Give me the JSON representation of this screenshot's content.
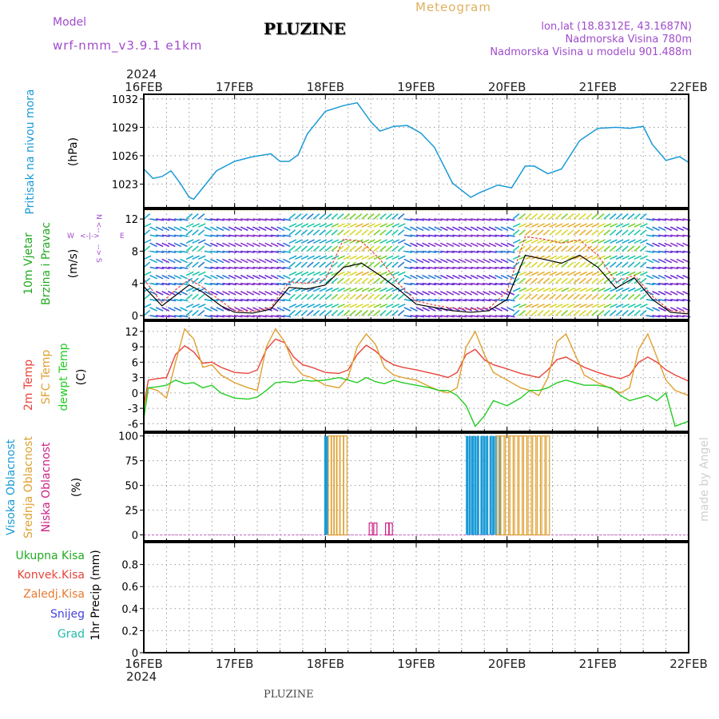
{
  "header": {
    "model_label": "Model",
    "model_name": "wrf-nmm_v3.9.1 e1km",
    "station": "PLUZINE",
    "product": "Meteogram",
    "coords": "lon,lat (18.8312E, 43.1687N)",
    "elevation": "Nadmorska Visina 780m",
    "model_elevation": "Nadmorska Visina u modelu 901.488m",
    "footer": "PLUZINE",
    "credit": "made by Angel"
  },
  "time_axis": {
    "year": "2024",
    "labels": [
      "16FEB",
      "17FEB",
      "18FEB",
      "19FEB",
      "20FEB",
      "21FEB",
      "22FEB"
    ]
  },
  "colors": {
    "pressure": "#1a9ad6",
    "temp2m": "#e8443a",
    "sfc_temp": "#e0a030",
    "dewpoint": "#22cc22",
    "high_cloud": "#1a9ad6",
    "mid_cloud": "#e0a030",
    "low_cloud": "#cc2288",
    "precip_total": "#22aa22",
    "precip_conv": "#e8443a",
    "precip_frz": "#e87a30",
    "snow": "#4444dd",
    "hail": "#22bbaa",
    "wind_axis_label": "#22aa22",
    "purple": "#a04ccc"
  },
  "chart_data": [
    {
      "type": "line",
      "ylabel": "Pritisak na nivou mora",
      "unit": "(hPa)",
      "ylim": [
        1020.5,
        1032.5
      ],
      "yticks": [
        1023,
        1026,
        1029,
        1032
      ],
      "x_days": [
        0,
        0.1,
        0.2,
        0.3,
        0.4,
        0.5,
        0.55,
        0.65,
        0.8,
        1,
        1.2,
        1.4,
        1.5,
        1.6,
        1.7,
        1.8,
        2,
        2.2,
        2.35,
        2.5,
        2.6,
        2.75,
        2.9,
        3.05,
        3.2,
        3.4,
        3.6,
        3.7,
        3.9,
        4.05,
        4.2,
        4.3,
        4.45,
        4.6,
        4.8,
        5,
        5.2,
        5.35,
        5.5,
        5.6,
        5.75,
        5.9,
        6
      ],
      "values": [
        1024.6,
        1023.6,
        1023.8,
        1024.4,
        1023.1,
        1021.6,
        1021.4,
        1022.6,
        1024.4,
        1025.4,
        1025.9,
        1026.2,
        1025.4,
        1025.4,
        1026.1,
        1028.3,
        1030.7,
        1031.3,
        1031.6,
        1029.6,
        1028.6,
        1029.1,
        1029.2,
        1028.4,
        1026.9,
        1023.1,
        1021.6,
        1022.1,
        1022.9,
        1022.6,
        1024.9,
        1024.9,
        1024.1,
        1024.6,
        1027.6,
        1028.9,
        1029.0,
        1028.9,
        1029.1,
        1027.2,
        1025.5,
        1025.9,
        1025.3
      ]
    },
    {
      "type": "area",
      "ylabel": "10m Vjetar",
      "ylabel2": "Brzina i Pravac",
      "unit": "(m/s)",
      "compass": [
        "N",
        "W",
        "E",
        "S"
      ],
      "ylim": [
        -0.5,
        13.2
      ],
      "yticks": [
        0,
        4,
        8,
        12
      ],
      "x_days": [
        0,
        0.2,
        0.35,
        0.5,
        0.65,
        0.85,
        1.0,
        1.2,
        1.4,
        1.6,
        1.8,
        2.0,
        2.2,
        2.4,
        2.6,
        2.8,
        3.0,
        3.2,
        3.4,
        3.6,
        3.8,
        4.0,
        4.2,
        4.4,
        4.6,
        4.8,
        5.0,
        5.2,
        5.4,
        5.6,
        5.8,
        6.0
      ],
      "speed_values": [
        3.6,
        1.2,
        2.5,
        3.8,
        2.9,
        1.2,
        0.4,
        0.3,
        0.8,
        3.5,
        3.3,
        3.8,
        6.0,
        6.5,
        5.0,
        3.3,
        1.4,
        1.0,
        0.6,
        0.4,
        0.6,
        2.0,
        7.5,
        7.0,
        6.5,
        7.5,
        6.0,
        3.4,
        4.7,
        2.0,
        0.4,
        0.2
      ],
      "gust_values": [
        4.5,
        1.6,
        3.2,
        4.5,
        3.5,
        1.8,
        0.6,
        0.5,
        1.0,
        4.2,
        4.0,
        4.5,
        9.5,
        9.2,
        7.0,
        4.0,
        1.8,
        1.3,
        0.9,
        0.8,
        0.9,
        3.0,
        9.8,
        9.5,
        9.0,
        9.4,
        7.5,
        4.2,
        5.0,
        2.4,
        0.6,
        0.4
      ]
    },
    {
      "type": "line",
      "ylabel": "2m Temp",
      "ylabel2": "SFC Temp",
      "ylabel3": "dewpt Temp",
      "unit": "(C)",
      "ylim": [
        -7.5,
        14
      ],
      "yticks": [
        -6,
        -3,
        0,
        3,
        6,
        9,
        12
      ],
      "x_days": [
        0,
        0.05,
        0.15,
        0.25,
        0.35,
        0.45,
        0.55,
        0.65,
        0.75,
        0.85,
        1.0,
        1.15,
        1.25,
        1.35,
        1.45,
        1.55,
        1.65,
        1.75,
        1.85,
        2.0,
        2.15,
        2.25,
        2.35,
        2.45,
        2.55,
        2.65,
        2.75,
        2.85,
        3.0,
        3.15,
        3.25,
        3.35,
        3.45,
        3.55,
        3.65,
        3.75,
        3.85,
        4.0,
        4.15,
        4.25,
        4.35,
        4.45,
        4.55,
        4.65,
        4.75,
        4.85,
        5.0,
        5.15,
        5.25,
        5.35,
        5.45,
        5.55,
        5.65,
        5.75,
        5.85,
        6.0
      ],
      "series": [
        {
          "name": "2m Temp",
          "values": [
            -2.5,
            2.5,
            2.8,
            3.0,
            7.5,
            9.2,
            8.0,
            5.8,
            6.0,
            5.0,
            4.0,
            3.8,
            4.5,
            8.5,
            10.5,
            9.8,
            7.0,
            5.5,
            5.0,
            4.0,
            3.8,
            4.5,
            7.5,
            9.3,
            8.2,
            6.5,
            5.5,
            5.0,
            4.5,
            3.9,
            3.5,
            3.0,
            4.0,
            7.5,
            8.5,
            6.5,
            5.5,
            4.7,
            3.8,
            3.4,
            3.0,
            4.5,
            6.5,
            7.0,
            6.0,
            5.0,
            4.0,
            3.2,
            2.8,
            3.5,
            6.0,
            7.0,
            6.0,
            4.5,
            3.5,
            2.3
          ]
        },
        {
          "name": "SFC Temp",
          "values": [
            -3.0,
            1.0,
            0.5,
            -1.0,
            6.0,
            12.5,
            10.5,
            5.0,
            5.5,
            3.5,
            2.0,
            1.0,
            0.5,
            9.0,
            12.5,
            10.0,
            5.5,
            3.5,
            3.0,
            1.5,
            1.0,
            3.0,
            9.0,
            11.5,
            9.5,
            5.0,
            3.5,
            3.0,
            2.5,
            1.2,
            0.5,
            0.0,
            1.0,
            9.0,
            12.0,
            7.5,
            4.0,
            2.5,
            1.0,
            0.5,
            -0.5,
            3.0,
            10.0,
            11.5,
            7.5,
            3.5,
            2.0,
            0.8,
            0.0,
            1.0,
            8.5,
            11.5,
            7.0,
            2.5,
            0.5,
            -0.5
          ]
        },
        {
          "name": "dewpt Temp",
          "values": [
            -5.0,
            1.0,
            1.2,
            1.5,
            2.5,
            1.8,
            2.0,
            1.0,
            1.5,
            0.0,
            -1.0,
            -1.2,
            -0.8,
            0.5,
            2.0,
            2.2,
            2.0,
            2.5,
            2.3,
            2.5,
            3.0,
            2.5,
            2.0,
            3.0,
            2.2,
            1.8,
            2.5,
            2.0,
            1.5,
            1.0,
            0.5,
            0.5,
            -0.5,
            -2.5,
            -6.5,
            -4.5,
            -1.5,
            -2.5,
            -1.0,
            0.5,
            0.5,
            1.0,
            2.0,
            2.5,
            2.0,
            1.5,
            1.5,
            1.0,
            -0.5,
            -1.5,
            -1.0,
            -0.5,
            -1.5,
            0.0,
            -6.5,
            -5.5
          ]
        }
      ]
    },
    {
      "type": "bar",
      "ylabel": "Visoka Oblacnost",
      "ylabel2": "Srednja Oblacnost",
      "ylabel3": "Niska Oblacnost",
      "unit": "(%)",
      "ylim": [
        -6,
        103
      ],
      "yticks": [
        0,
        25,
        50,
        75,
        100
      ],
      "series": [
        {
          "name": "Visoka Oblacnost",
          "x_days": [
            2.0,
            2.02,
            3.56,
            3.59,
            3.62,
            3.65,
            3.68,
            3.72,
            3.75,
            3.78,
            3.82,
            3.85,
            3.88,
            3.92
          ],
          "values": [
            100,
            100,
            100,
            100,
            100,
            100,
            100,
            100,
            100,
            100,
            100,
            100,
            100,
            100
          ]
        },
        {
          "name": "Srednja Oblacnost",
          "x_days": [
            2.05,
            2.08,
            2.11,
            2.14,
            2.18,
            2.22,
            3.9,
            3.95,
            4.0,
            4.05,
            4.1,
            4.15,
            4.2,
            4.25,
            4.3,
            4.35,
            4.4,
            4.45
          ],
          "values": [
            100,
            100,
            100,
            100,
            100,
            100,
            100,
            100,
            100,
            100,
            100,
            100,
            100,
            100,
            100,
            100,
            100,
            100
          ]
        },
        {
          "name": "Niska Oblacnost",
          "x_days": [
            2.5,
            2.55,
            2.68,
            2.72
          ],
          "values": [
            12,
            12,
            12,
            12
          ]
        }
      ]
    },
    {
      "type": "bar",
      "ylabel": "1hr Precip",
      "unit": "(mm)",
      "ylim": [
        0,
        1.0
      ],
      "yticks": [
        0,
        0.2,
        0.4,
        0.6,
        0.8
      ],
      "ytick_labels": [
        "0",
        "0.2",
        "0.4",
        "0.6",
        "0.8"
      ],
      "legend": [
        "Ukupna Kisa",
        "Konvek.Kisa",
        "Zaledj.Kisa",
        "Snijeg",
        "Grad"
      ],
      "values": []
    }
  ]
}
